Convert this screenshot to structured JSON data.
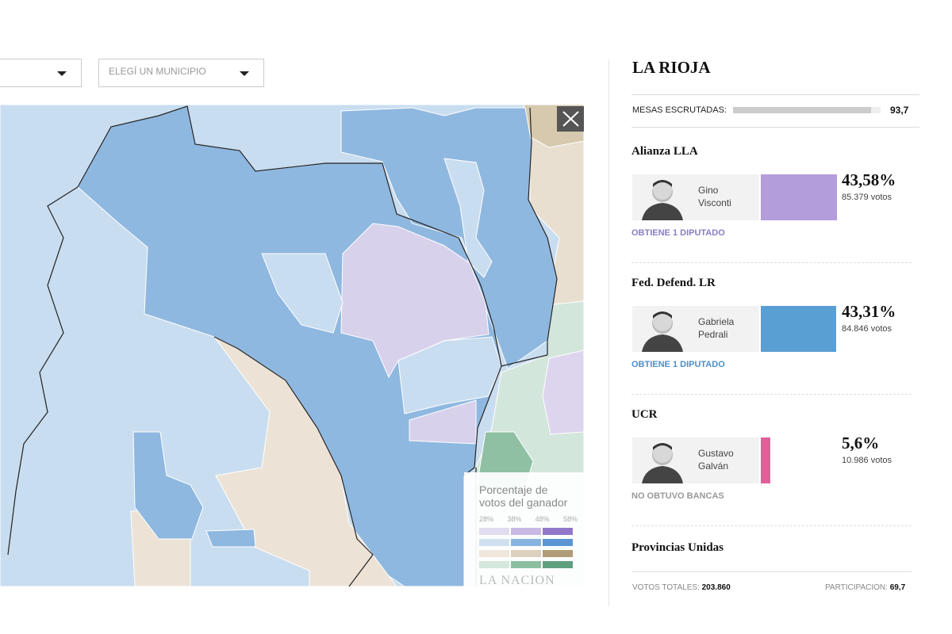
{
  "filters": {
    "municipio_placeholder": "ELEGÍ UN MUNICIPIO"
  },
  "map": {
    "legend": {
      "title_lines": [
        "Porcentaje de",
        "votos del ganador"
      ],
      "scale_labels": [
        "28%",
        "38%",
        "48%",
        "58%"
      ],
      "credit": "LA NACION"
    }
  },
  "panel": {
    "title": "LA RIOJA",
    "mesas": {
      "label": "MESAS ESCRUTADAS:",
      "value": {
        "value": 93.7,
        "label": "93,7"
      }
    },
    "parties": [
      {
        "name": "Alianza LLA",
        "candidate_lines": [
          "Gino",
          "Visconti"
        ],
        "share": {
          "value": 43.58,
          "label": "43,58%"
        },
        "votes": "85.379 votos",
        "result": "OBTIENE 1 DIPUTADO",
        "color": "#b39ddb",
        "result_color": "#8c7cc6"
      },
      {
        "name": "Fed. Defend. LR",
        "candidate_lines": [
          "Gabriela",
          "Pedrali"
        ],
        "share": {
          "value": 43.31,
          "label": "43,31%"
        },
        "votes": "84.846 votos",
        "result": "OBTIENE 1 DIPUTADO",
        "color": "#5a9fd4",
        "result_color": "#4a8fcc"
      },
      {
        "name": "UCR",
        "candidate_lines": [
          "Gustavo",
          "Galván"
        ],
        "share": {
          "value": 5.6,
          "label": "5,6%"
        },
        "votes": "10.986 votos",
        "result": "NO OBTUVO BANCAS",
        "color": "#e0609a",
        "result_color": "#999999"
      },
      {
        "name": "Provincias Unidas"
      }
    ],
    "footer": {
      "votes_label": "VOTOS TOTALES:",
      "votes": "203.860",
      "participation_label": "PARTICIPACIÓN:",
      "participation": "69,7"
    }
  }
}
